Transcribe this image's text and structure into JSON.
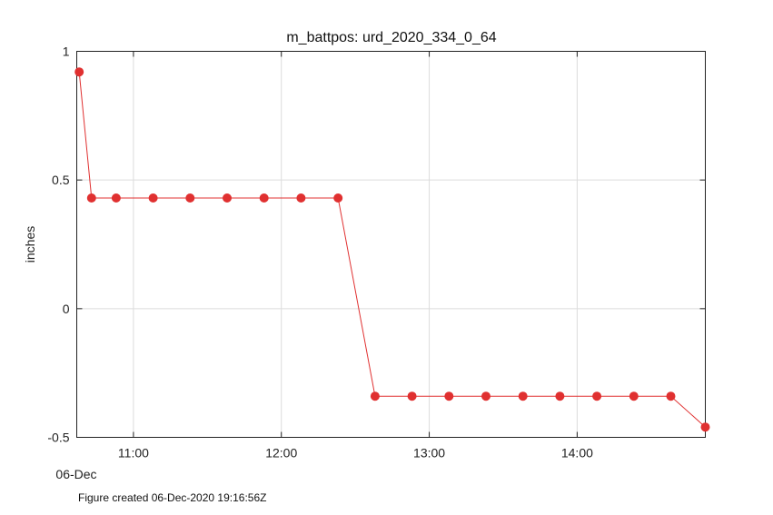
{
  "footer": "Figure created 06-Dec-2020 19:16:56Z",
  "colors": {
    "series": "#e03030",
    "grid": "#dcdcdc",
    "axis": "#222222"
  },
  "chart_data": {
    "type": "line",
    "title": "m_battpos: urd_2020_334_0_64",
    "xlabel": "",
    "ylabel": "inches",
    "x_date_label": "06-Dec",
    "xlim": [
      "10:37",
      "14:52"
    ],
    "ylim": [
      -0.5,
      1
    ],
    "x_ticks": [
      "11:00",
      "12:00",
      "13:00",
      "14:00"
    ],
    "y_ticks": [
      1,
      0.5,
      0,
      -0.5
    ],
    "y_tick_labels": [
      "1",
      "0.5",
      "0",
      "-0.5"
    ],
    "grid": true,
    "series": [
      {
        "marker": "circle",
        "x": [
          "10:38",
          "10:43",
          "10:53",
          "11:08",
          "11:23",
          "11:38",
          "11:53",
          "12:08",
          "12:23",
          "12:38",
          "12:53",
          "13:08",
          "13:23",
          "13:38",
          "13:53",
          "14:08",
          "14:23",
          "14:38",
          "14:52"
        ],
        "y": [
          0.92,
          0.43,
          0.43,
          0.43,
          0.43,
          0.43,
          0.43,
          0.43,
          0.43,
          -0.34,
          -0.34,
          -0.34,
          -0.34,
          -0.34,
          -0.34,
          -0.34,
          -0.34,
          -0.34,
          -0.46
        ]
      }
    ]
  }
}
